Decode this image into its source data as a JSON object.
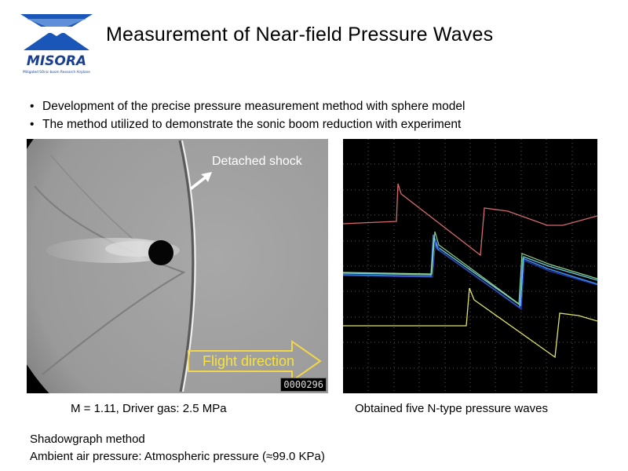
{
  "logo": {
    "brand": "MISORA",
    "tagline": "Mitigated SOnic-boom Research Airplane",
    "accent": "#1a56b8"
  },
  "title": "Measurement of Near-field Pressure Waves",
  "bullets": [
    "Development of the precise pressure measurement method with sphere model",
    "The method utilized to demonstrate the sonic boom reduction with experiment"
  ],
  "shadowgraph": {
    "shock_label": "Detached shock",
    "flight_label": "Flight direction",
    "frame_counter": "0000296",
    "caption": "M = 1.11, Driver gas: 2.5 MPa"
  },
  "oscilloscope": {
    "caption": "Obtained five N-type pressure waves",
    "trace_colors": [
      "#d46a6e",
      "#3f8ae6",
      "#6bd0e6",
      "#8fd08a",
      "#e0e26a"
    ]
  },
  "notes": [
    "Shadowgraph method",
    "Ambient air pressure: Atmospheric pressure (≈99.0 KPa)"
  ]
}
